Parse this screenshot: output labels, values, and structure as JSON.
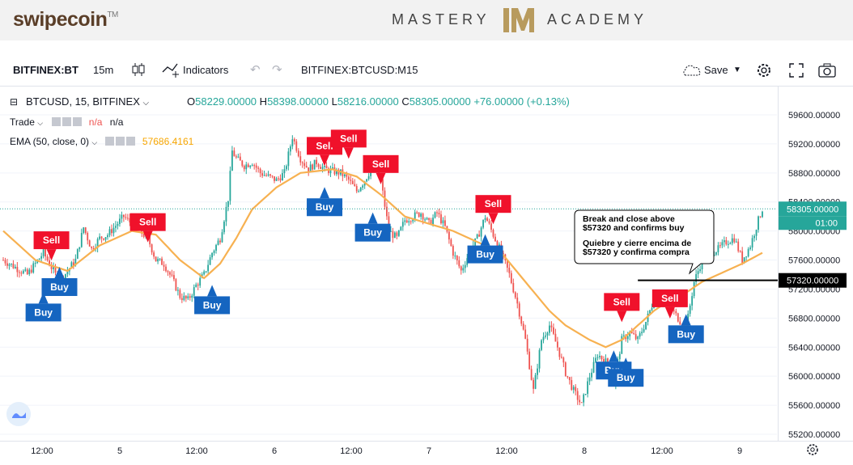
{
  "banner": {
    "brand": "swipecoin",
    "brand_tm": "TM",
    "academy_left": "MASTERY",
    "academy_right": "ACADEMY",
    "academy_logo": "IM"
  },
  "toolbar": {
    "symbol": "BITFINEX:BT",
    "interval": "15m",
    "indicators_label": "Indicators",
    "chart_title": "BITFINEX:BTCUSD:M15",
    "save_label": "Save"
  },
  "legend": {
    "symbol_line": "BTCUSD, 15, BITFINEX",
    "o_label": "O",
    "o_value": "58229.00000",
    "h_label": "H",
    "h_value": "58398.00000",
    "l_label": "L",
    "l_value": "58216.00000",
    "c_label": "C",
    "c_value": "58305.00000",
    "change": "+76.00000 (+0.13%)",
    "trade_label": "Trade",
    "trade_v1": "n/a",
    "trade_v2": "n/a",
    "ema_label": "EMA (50, close, 0)",
    "ema_value": "57686.4161"
  },
  "colors": {
    "up": "#26a69a",
    "down": "#ef5350",
    "ema": "#f7b151",
    "sell": "#f0112b",
    "buy": "#1565c0",
    "price_label": "#26a69a"
  },
  "icons": [
    "candles-icon",
    "indicators-icon",
    "undo-icon",
    "redo-icon",
    "cloud-icon",
    "gear-icon",
    "fullscreen-icon",
    "camera-icon",
    "tradingview-logo-icon",
    "settings-icon"
  ],
  "chart_data": {
    "type": "candlestick",
    "symbol": "BTCUSD",
    "interval": "15",
    "y_ticks": [
      59600,
      59200,
      58800,
      58400,
      58000,
      57600,
      57200,
      56800,
      56400,
      56000,
      55600,
      55200
    ],
    "y_tick_labels": [
      "59600.00000",
      "59200.00000",
      "58800.00000",
      "58400.00000",
      "58000.00000",
      "57600.00000",
      "57200.00000",
      "56800.00000",
      "56400.00000",
      "56000.00000",
      "55600.00000",
      "55200.00000"
    ],
    "ylim": [
      55150,
      59700
    ],
    "x_ticks": [
      "12:00",
      "5",
      "12:00",
      "6",
      "12:00",
      "7",
      "12:00",
      "8",
      "12:00",
      "9"
    ],
    "current_price": 58305,
    "current_price_label": "58305.00000",
    "countdown": "01:00",
    "level": 57320,
    "level_label": "57320.00000",
    "close_path": [
      [
        0,
        57600
      ],
      [
        3,
        57400
      ],
      [
        5,
        57700
      ],
      [
        7,
        57300
      ],
      [
        9,
        57600
      ],
      [
        10,
        58050
      ],
      [
        11,
        57750
      ],
      [
        12,
        57900
      ],
      [
        13,
        57950
      ],
      [
        15,
        58200
      ],
      [
        17,
        58000
      ],
      [
        18,
        57900
      ],
      [
        19,
        57600
      ],
      [
        20,
        57550
      ],
      [
        21,
        57350
      ],
      [
        22,
        57100
      ],
      [
        23,
        57050
      ],
      [
        24,
        57250
      ],
      [
        25,
        57400
      ],
      [
        26,
        57700
      ],
      [
        27,
        57900
      ],
      [
        28,
        58450
      ],
      [
        28.5,
        59100
      ],
      [
        29,
        59000
      ],
      [
        30,
        58900
      ],
      [
        31,
        58950
      ],
      [
        32,
        58800
      ],
      [
        34,
        58700
      ],
      [
        35,
        58800
      ],
      [
        36,
        59300
      ],
      [
        37,
        59000
      ],
      [
        38,
        58850
      ],
      [
        39,
        58950
      ],
      [
        40,
        58850
      ],
      [
        42,
        58800
      ],
      [
        43,
        58700
      ],
      [
        44,
        58550
      ],
      [
        45,
        58700
      ],
      [
        46,
        58900
      ],
      [
        47,
        58700
      ],
      [
        48,
        58000
      ],
      [
        49,
        57900
      ],
      [
        50,
        58150
      ],
      [
        51,
        58200
      ],
      [
        52,
        58250
      ],
      [
        53,
        58100
      ],
      [
        54,
        58250
      ],
      [
        55,
        58050
      ],
      [
        56,
        57700
      ],
      [
        57,
        57450
      ],
      [
        58,
        57700
      ],
      [
        59,
        57900
      ],
      [
        60,
        58200
      ],
      [
        61,
        57950
      ],
      [
        62,
        57700
      ],
      [
        63,
        57400
      ],
      [
        64,
        57000
      ],
      [
        65,
        56500
      ],
      [
        66,
        55800
      ],
      [
        67,
        56500
      ],
      [
        68,
        56700
      ],
      [
        69,
        56400
      ],
      [
        70,
        56050
      ],
      [
        71,
        55800
      ],
      [
        72,
        55600
      ],
      [
        73,
        56000
      ],
      [
        74,
        56300
      ],
      [
        75,
        56200
      ],
      [
        76,
        55900
      ],
      [
        77,
        56500
      ],
      [
        78,
        56600
      ],
      [
        79,
        56500
      ],
      [
        80,
        56750
      ],
      [
        81,
        57050
      ],
      [
        82,
        57100
      ],
      [
        83,
        56950
      ],
      [
        84,
        56800
      ],
      [
        85,
        56650
      ],
      [
        86,
        57300
      ],
      [
        87,
        57600
      ],
      [
        88,
        57700
      ],
      [
        89,
        57750
      ],
      [
        90,
        57850
      ],
      [
        91,
        57900
      ],
      [
        92,
        57600
      ],
      [
        93,
        57800
      ],
      [
        94,
        58150
      ],
      [
        94.5,
        58305
      ]
    ],
    "ema_path": [
      [
        0,
        58000
      ],
      [
        4,
        57600
      ],
      [
        8,
        57450
      ],
      [
        12,
        57800
      ],
      [
        16,
        58000
      ],
      [
        19,
        57950
      ],
      [
        22,
        57600
      ],
      [
        25,
        57350
      ],
      [
        27,
        57550
      ],
      [
        29,
        57900
      ],
      [
        31,
        58300
      ],
      [
        34,
        58600
      ],
      [
        37,
        58800
      ],
      [
        41,
        58850
      ],
      [
        44,
        58750
      ],
      [
        47,
        58500
      ],
      [
        50,
        58200
      ],
      [
        53,
        58100
      ],
      [
        56,
        58000
      ],
      [
        59,
        57850
      ],
      [
        62,
        57700
      ],
      [
        65,
        57300
      ],
      [
        68,
        56900
      ],
      [
        70,
        56700
      ],
      [
        73,
        56500
      ],
      [
        75,
        56400
      ],
      [
        77,
        56500
      ],
      [
        79,
        56700
      ],
      [
        81,
        56900
      ],
      [
        83,
        57050
      ],
      [
        85,
        57150
      ],
      [
        87,
        57300
      ],
      [
        89,
        57400
      ],
      [
        92,
        57550
      ],
      [
        94.5,
        57700
      ]
    ],
    "signals": [
      {
        "type": "Sell",
        "label": "Sell",
        "i": 6,
        "price": 57750
      },
      {
        "type": "Buy",
        "label": "Buy",
        "i": 5,
        "price": 57000
      },
      {
        "type": "Buy",
        "label": "Buy",
        "i": 7,
        "price": 57350
      },
      {
        "type": "Sell",
        "label": "Sell",
        "i": 18,
        "price": 58000
      },
      {
        "type": "Buy",
        "label": "Buy",
        "i": 26,
        "price": 57100
      },
      {
        "type": "Sell",
        "label": "Sell",
        "i": 40,
        "price": 59050
      },
      {
        "type": "Sell",
        "label": "Sell",
        "i": 43,
        "price": 59150
      },
      {
        "type": "Buy",
        "label": "Buy",
        "i": 40,
        "price": 58450
      },
      {
        "type": "Sell",
        "label": "Sell",
        "i": 47,
        "price": 58800
      },
      {
        "type": "Buy",
        "label": "Buy",
        "i": 46,
        "price": 58100
      },
      {
        "type": "Sell",
        "label": "Sell",
        "i": 61,
        "price": 58250
      },
      {
        "type": "Buy",
        "label": "Buy",
        "i": 60,
        "price": 57800
      },
      {
        "type": "Sell",
        "label": "Sell",
        "i": 77,
        "price": 56900
      },
      {
        "type": "Buy",
        "label": "Buy",
        "i": 76,
        "price": 56200
      },
      {
        "type": "Buy",
        "label": "Buy",
        "i": 77.5,
        "price": 56100
      },
      {
        "type": "Sell",
        "label": "Sell",
        "i": 83,
        "price": 56950
      },
      {
        "type": "Buy",
        "label": "Buy",
        "i": 85,
        "price": 56700
      }
    ],
    "annotation": {
      "line1": "Break and close above",
      "line2": "$57320 and confirms buy",
      "line3": "Quiebre y cierre encima de",
      "line4": "$57320 y confirma compra"
    }
  }
}
